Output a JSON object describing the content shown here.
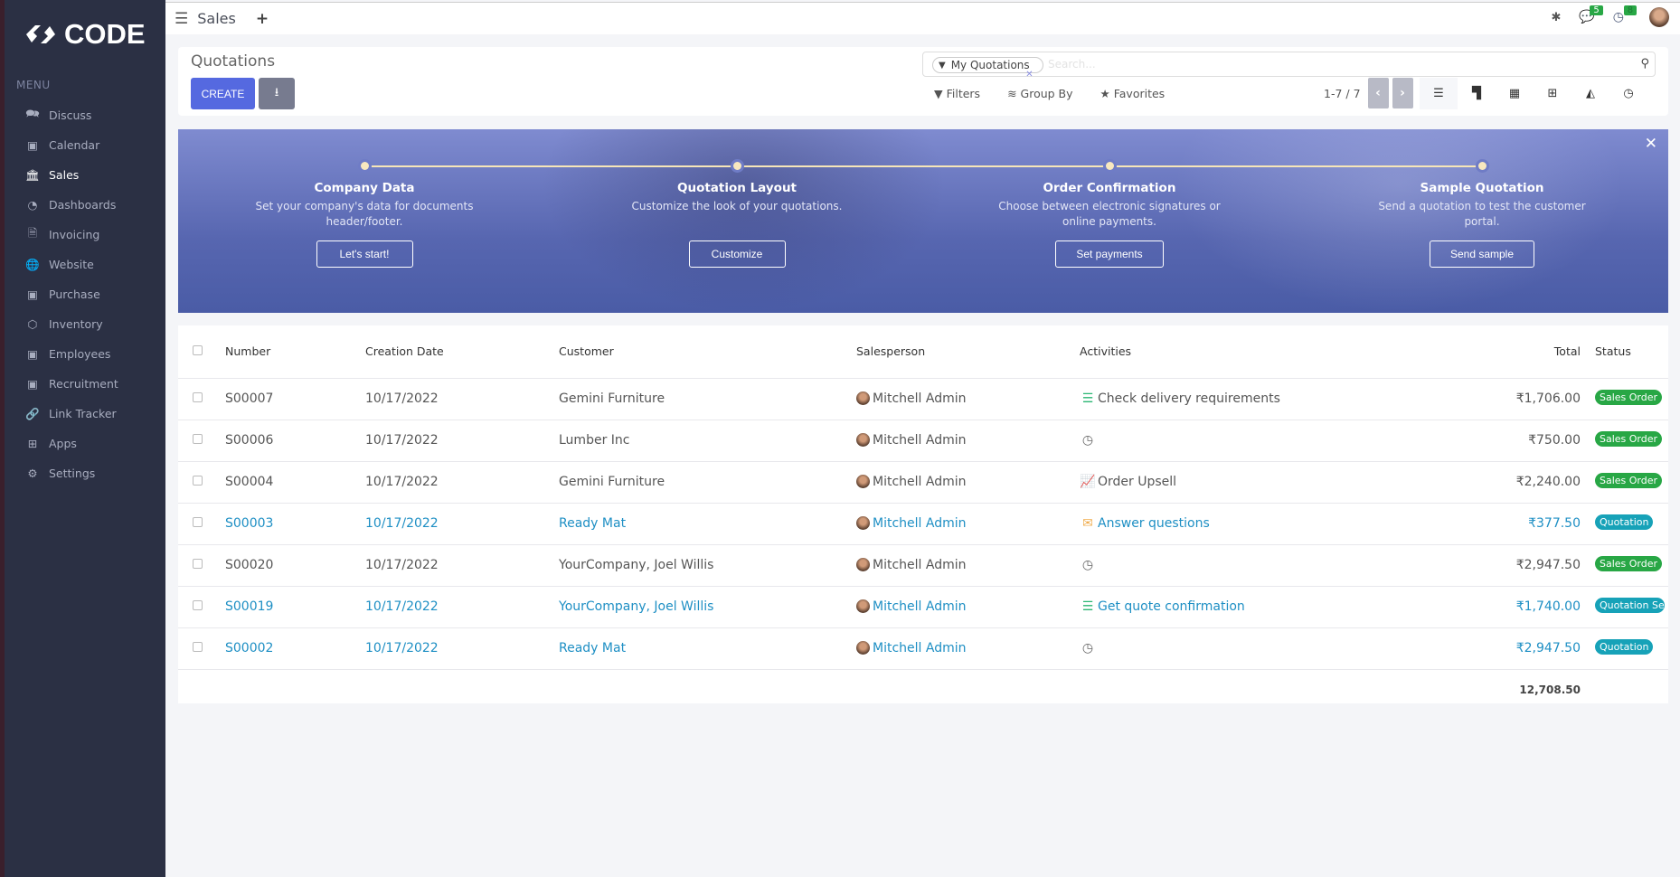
{
  "brand": "CODE",
  "menu_heading": "MENU",
  "sidebar": {
    "items": [
      {
        "label": "Discuss",
        "icon": "chat-icon"
      },
      {
        "label": "Calendar",
        "icon": "app-thumbnail-icon"
      },
      {
        "label": "Sales",
        "icon": "bank-icon",
        "active": true
      },
      {
        "label": "Dashboards",
        "icon": "gauge-icon"
      },
      {
        "label": "Invoicing",
        "icon": "invoice-icon"
      },
      {
        "label": "Website",
        "icon": "globe-icon"
      },
      {
        "label": "Purchase",
        "icon": "app-thumbnail-icon"
      },
      {
        "label": "Inventory",
        "icon": "box-icon"
      },
      {
        "label": "Employees",
        "icon": "app-thumbnail-icon"
      },
      {
        "label": "Recruitment",
        "icon": "app-thumbnail-icon"
      },
      {
        "label": "Link Tracker",
        "icon": "link-icon"
      },
      {
        "label": "Apps",
        "icon": "grid-icon"
      },
      {
        "label": "Settings",
        "icon": "gear-icon"
      }
    ]
  },
  "topbar": {
    "app": "Sales",
    "messages_count": "5",
    "activities_count": "8"
  },
  "control": {
    "title": "Quotations",
    "create": "CREATE",
    "facet": "My Quotations",
    "search_placeholder": "Search...",
    "filters": "Filters",
    "group_by": "Group By",
    "favorites": "Favorites",
    "pager": "1-7 / 7"
  },
  "banner": {
    "steps": [
      {
        "title": "Company Data",
        "text": "Set your company's data for documents header/footer.",
        "button": "Let's start!"
      },
      {
        "title": "Quotation Layout",
        "text": "Customize the look of your quotations.",
        "button": "Customize"
      },
      {
        "title": "Order Confirmation",
        "text": "Choose between electronic signatures or online payments.",
        "button": "Set payments"
      },
      {
        "title": "Sample Quotation",
        "text": "Send a quotation to test the customer portal.",
        "button": "Send sample"
      }
    ]
  },
  "table": {
    "columns": [
      "Number",
      "Creation Date",
      "Customer",
      "Salesperson",
      "Activities",
      "Total",
      "Status"
    ],
    "rows": [
      {
        "number": "S00007",
        "date": "10/17/2022",
        "customer": "Gemini Furniture",
        "salesperson": "Mitchell Admin",
        "activity": "Check delivery requirements",
        "activity_icon": "todo-list-icon",
        "total": "₹1,706.00",
        "status": "Sales Order",
        "link": false
      },
      {
        "number": "S00006",
        "date": "10/17/2022",
        "customer": "Lumber Inc",
        "salesperson": "Mitchell Admin",
        "activity": "",
        "activity_icon": "clock-icon",
        "total": "₹750.00",
        "status": "Sales Order",
        "link": false
      },
      {
        "number": "S00004",
        "date": "10/17/2022",
        "customer": "Gemini Furniture",
        "salesperson": "Mitchell Admin",
        "activity": "Order Upsell",
        "activity_icon": "chart-line-icon",
        "total": "₹2,240.00",
        "status": "Sales Order",
        "link": false
      },
      {
        "number": "S00003",
        "date": "10/17/2022",
        "customer": "Ready Mat",
        "salesperson": "Mitchell Admin",
        "activity": "Answer questions",
        "activity_icon": "envelope-icon",
        "total": "₹377.50",
        "status": "Quotation",
        "link": true
      },
      {
        "number": "S00020",
        "date": "10/17/2022",
        "customer": "YourCompany, Joel Willis",
        "salesperson": "Mitchell Admin",
        "activity": "",
        "activity_icon": "clock-icon",
        "total": "₹2,947.50",
        "status": "Sales Order",
        "link": false
      },
      {
        "number": "S00019",
        "date": "10/17/2022",
        "customer": "YourCompany, Joel Willis",
        "salesperson": "Mitchell Admin",
        "activity": "Get quote confirmation",
        "activity_icon": "todo-list-icon",
        "total": "₹1,740.00",
        "status": "Quotation Sent",
        "link": true
      },
      {
        "number": "S00002",
        "date": "10/17/2022",
        "customer": "Ready Mat",
        "salesperson": "Mitchell Admin",
        "activity": "",
        "activity_icon": "clock-icon",
        "total": "₹2,947.50",
        "status": "Quotation",
        "link": true
      }
    ],
    "grand_total": "12,708.50"
  },
  "colors": {
    "sidebar": "#2b3044",
    "primary": "#5569e0",
    "sales_order": "#28a745",
    "quotation": "#17a2b8",
    "link": "#1e8fc4"
  }
}
